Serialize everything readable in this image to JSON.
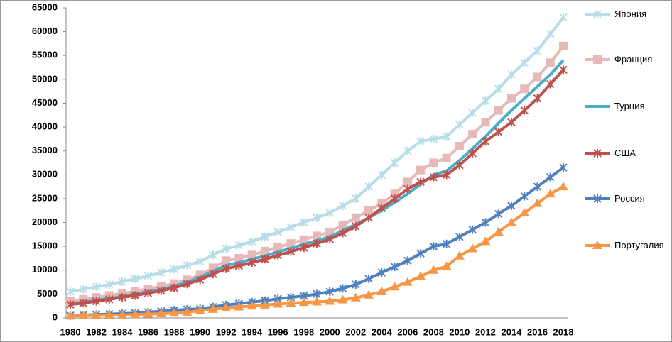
{
  "chart_data": {
    "type": "line",
    "categories": [
      "1980",
      null,
      "1982",
      null,
      "1984",
      null,
      "1986",
      null,
      "1988",
      null,
      "1990",
      null,
      "1992",
      null,
      "1994",
      null,
      "1996",
      null,
      "1998",
      null,
      "2000",
      null,
      "2002",
      null,
      "2004",
      null,
      "2006",
      null,
      "2008",
      null,
      "2010",
      null,
      "2012",
      null,
      "2014",
      null,
      "2016",
      null,
      "2018"
    ],
    "ylim": [
      0,
      65000
    ],
    "yticks": [
      0,
      5000,
      10000,
      15000,
      20000,
      25000,
      30000,
      35000,
      40000,
      45000,
      50000,
      55000,
      60000,
      65000
    ],
    "grid": false,
    "legend": "right",
    "series": [
      {
        "name": "Япония",
        "color": "#b7dde8",
        "marker": "x",
        "values": [
          5500,
          6000,
          6500,
          7000,
          7600,
          8200,
          8800,
          9500,
          10200,
          11000,
          11800,
          13200,
          14500,
          15200,
          16000,
          17000,
          18000,
          19000,
          20000,
          21000,
          22000,
          23500,
          25000,
          27500,
          30000,
          32500,
          35000,
          37000,
          37500,
          38000,
          40500,
          43000,
          45500,
          48000,
          51000,
          53500,
          56000,
          59500,
          63000
        ]
      },
      {
        "name": "Франция",
        "color": "#e6b9b8",
        "marker": "square",
        "values": [
          3500,
          3900,
          4300,
          4700,
          5100,
          5600,
          6100,
          6600,
          7200,
          8000,
          9000,
          10500,
          12000,
          12500,
          13200,
          14000,
          14800,
          15600,
          16400,
          17200,
          18000,
          19500,
          21000,
          22500,
          24000,
          26000,
          28500,
          31000,
          32500,
          33500,
          36000,
          38500,
          41000,
          43500,
          46000,
          48000,
          50500,
          53500,
          57000
        ]
      },
      {
        "name": "Турция",
        "color": "#4bacc6",
        "marker": "none",
        "values": [
          3000,
          3300,
          3700,
          4100,
          4500,
          5000,
          5500,
          6000,
          6600,
          7500,
          8500,
          9800,
          11000,
          11600,
          12300,
          13000,
          13800,
          14600,
          15400,
          16200,
          17000,
          18300,
          19600,
          21000,
          22500,
          24200,
          26000,
          28000,
          30000,
          30800,
          33000,
          35500,
          38000,
          40800,
          43500,
          46000,
          48500,
          51000,
          54000
        ]
      },
      {
        "name": "США",
        "color": "#c0504d",
        "marker": "x",
        "values": [
          2800,
          3100,
          3500,
          3900,
          4300,
          4700,
          5200,
          5700,
          6300,
          7100,
          8000,
          9200,
          10300,
          10900,
          11600,
          12300,
          13100,
          13900,
          14700,
          15600,
          16500,
          17800,
          19200,
          21000,
          23000,
          25000,
          27000,
          28500,
          29500,
          30000,
          32000,
          34500,
          37000,
          39000,
          41000,
          43500,
          46000,
          49000,
          52000
        ]
      },
      {
        "name": "Россия",
        "color": "#4f81bd",
        "marker": "x",
        "values": [
          500,
          600,
          700,
          800,
          900,
          1000,
          1200,
          1400,
          1600,
          1800,
          1900,
          2300,
          2700,
          3000,
          3300,
          3600,
          4000,
          4300,
          4600,
          5000,
          5500,
          6200,
          7000,
          8200,
          9500,
          10700,
          12000,
          13500,
          15000,
          15500,
          17000,
          18500,
          20000,
          21800,
          23500,
          25500,
          27500,
          29500,
          31500
        ]
      },
      {
        "name": "Португалия",
        "color": "#f79646",
        "marker": "triangle",
        "values": [
          400,
          450,
          500,
          560,
          620,
          700,
          800,
          900,
          1000,
          1200,
          1500,
          1800,
          2100,
          2300,
          2500,
          2700,
          2900,
          3100,
          3250,
          3350,
          3500,
          3800,
          4200,
          4800,
          5500,
          6500,
          7500,
          8700,
          10000,
          10800,
          13000,
          14500,
          16000,
          18000,
          20000,
          22000,
          24000,
          26000,
          27500
        ]
      }
    ]
  }
}
